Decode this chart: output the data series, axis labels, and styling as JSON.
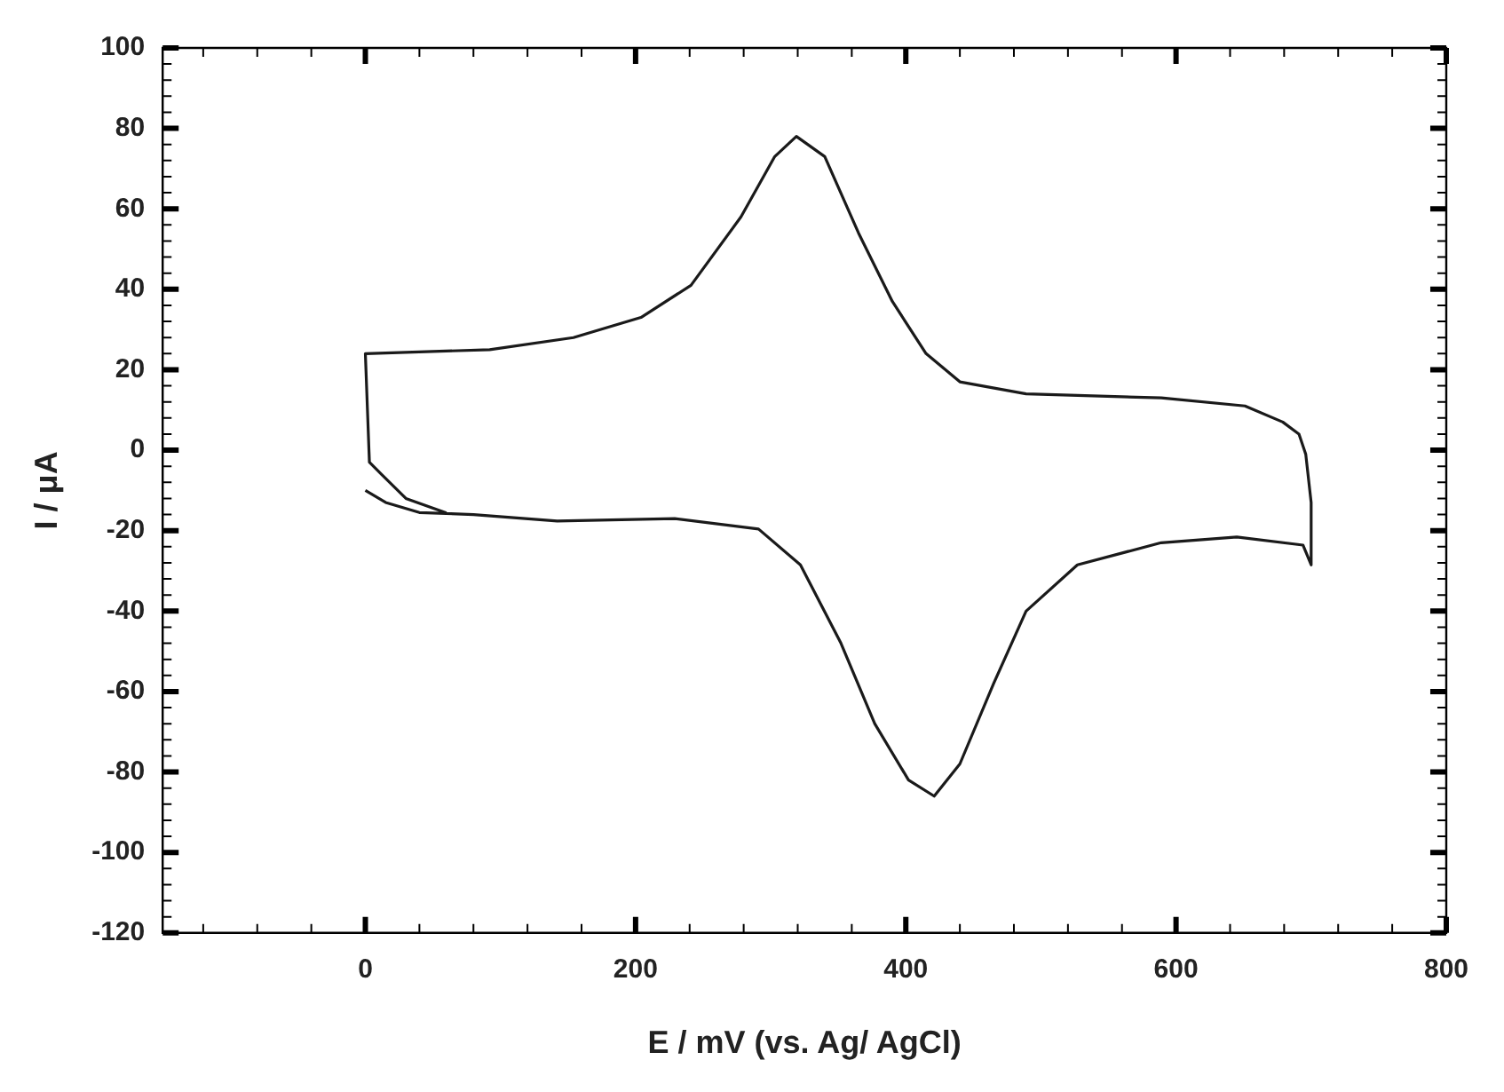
{
  "chart_data": {
    "type": "line",
    "xlabel": "E / mV (vs. Ag/ AgCl)",
    "ylabel": "I / μA",
    "xlim": [
      -150,
      800
    ],
    "xticks": [
      0,
      200,
      400,
      600,
      800
    ],
    "ylim": [
      -120,
      100
    ],
    "yticks": [
      -120,
      -100,
      -80,
      -60,
      -40,
      -20,
      0,
      20,
      40,
      60,
      80,
      100
    ],
    "grid": false,
    "legend": false,
    "marker": "none",
    "line_style": "solid",
    "series": [
      {
        "color": "#1a1a1a",
        "x": [
          0,
          15,
          40,
          80,
          142,
          229,
          291,
          322,
          352,
          377,
          402,
          421,
          440,
          465,
          489,
          527,
          589,
          645,
          694,
          700,
          700,
          696,
          691,
          679,
          651,
          589,
          489,
          440,
          415,
          390,
          365,
          340,
          319,
          303,
          278,
          241,
          204,
          154,
          92,
          0,
          3,
          12,
          30,
          60
        ],
        "values": [
          -10,
          -13,
          -15.5,
          -16,
          -17.6,
          -17,
          -19.6,
          -28.5,
          -48,
          -68,
          -82,
          -86,
          -78,
          -58,
          -40,
          -28.5,
          -23,
          -21.6,
          -23.6,
          -28.5,
          -13,
          -1,
          4,
          7,
          11,
          13,
          14,
          17,
          24,
          37,
          54,
          73,
          78,
          73,
          58,
          41,
          33,
          28,
          25,
          24,
          -3,
          -6,
          -12,
          -15.6
        ]
      }
    ]
  }
}
